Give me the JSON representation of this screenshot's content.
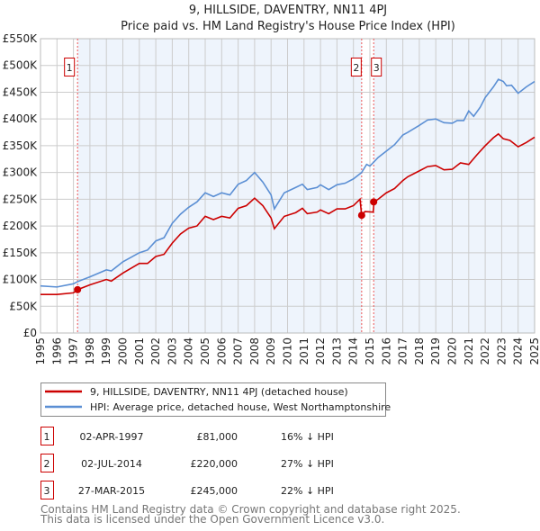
{
  "chart_data": {
    "type": "line",
    "title": "9, HILLSIDE, DAVENTRY, NN11 4PJ",
    "subtitle": "Price paid vs. HM Land Registry's House Price Index (HPI)",
    "xlim": [
      1995,
      2025
    ],
    "ylim": [
      0,
      550000
    ],
    "y_ticks": [
      0,
      50000,
      100000,
      150000,
      200000,
      250000,
      300000,
      350000,
      400000,
      450000,
      500000,
      550000
    ],
    "y_tick_labels": [
      "£0",
      "£50K",
      "£100K",
      "£150K",
      "£200K",
      "£250K",
      "£300K",
      "£350K",
      "£400K",
      "£450K",
      "£500K",
      "£550K"
    ],
    "x_ticks": [
      "1995",
      "1996",
      "1997",
      "1998",
      "1999",
      "2000",
      "2001",
      "2002",
      "2003",
      "2004",
      "2005",
      "2006",
      "2007",
      "2008",
      "2009",
      "2010",
      "2011",
      "2012",
      "2013",
      "2014",
      "2015",
      "2016",
      "2017",
      "2018",
      "2019",
      "2020",
      "2021",
      "2022",
      "2023",
      "2024",
      "2025"
    ],
    "grid": true,
    "legend_placement": "below",
    "series": [
      {
        "name": "9, HILLSIDE, DAVENTRY, NN11 4PJ (detached house)",
        "color": "#cc0000",
        "x": [
          1995,
          1996,
          1997,
          1997.25,
          1998,
          1999,
          1999.3,
          2000,
          2001,
          2001.5,
          2002,
          2002.5,
          2003,
          2003.5,
          2004,
          2004.5,
          2005,
          2005.5,
          2006,
          2006.5,
          2007,
          2007.5,
          2008,
          2008.5,
          2009,
          2009.2,
          2009.8,
          2010.5,
          2010.9,
          2011.2,
          2011.8,
          2012,
          2012.5,
          2013,
          2013.5,
          2014,
          2014.4,
          2014.5,
          2014.7,
          2015.2,
          2015.25,
          2015.5,
          2016,
          2016.5,
          2017,
          2017.3,
          2018,
          2018.5,
          2019,
          2019.5,
          2020,
          2020.5,
          2021,
          2021.5,
          2022,
          2022.5,
          2022.8,
          2023.1,
          2023.5,
          2024,
          2024.5,
          2025
        ],
        "y": [
          72000,
          72000,
          75000,
          81000,
          90000,
          100000,
          97000,
          112000,
          130000,
          130000,
          143000,
          147000,
          168000,
          185000,
          196000,
          200000,
          218000,
          212000,
          218000,
          215000,
          233000,
          238000,
          252000,
          238000,
          215000,
          195000,
          218000,
          225000,
          233000,
          223000,
          226000,
          230000,
          223000,
          232000,
          232000,
          238000,
          250000,
          220000,
          227000,
          226000,
          245000,
          250000,
          262000,
          270000,
          285000,
          292000,
          303000,
          311000,
          313000,
          305000,
          306000,
          318000,
          315000,
          333000,
          350000,
          365000,
          372000,
          363000,
          360000,
          348000,
          356000,
          366000
        ]
      },
      {
        "name": "HPI: Average price, detached house, West Northamptonshire",
        "color": "#5b8fd4",
        "x": [
          1995,
          1996,
          1997,
          1997.25,
          1998,
          1999,
          1999.3,
          2000,
          2001,
          2001.5,
          2002,
          2002.5,
          2003,
          2003.5,
          2004,
          2004.5,
          2005,
          2005.5,
          2006,
          2006.5,
          2007,
          2007.5,
          2008,
          2008.5,
          2009,
          2009.2,
          2009.8,
          2010.5,
          2010.9,
          2011.2,
          2011.8,
          2012,
          2012.5,
          2013,
          2013.5,
          2014,
          2014.5,
          2014.8,
          2015,
          2015.5,
          2016,
          2016.5,
          2017,
          2017.3,
          2018,
          2018.5,
          2019,
          2019.5,
          2020,
          2020.3,
          2020.7,
          2021,
          2021.3,
          2021.7,
          2022,
          2022.5,
          2022.8,
          2023.1,
          2023.3,
          2023.6,
          2024,
          2024.5,
          2025
        ],
        "y": [
          88000,
          86000,
          92000,
          96000,
          105000,
          118000,
          116000,
          133000,
          150000,
          155000,
          172000,
          178000,
          205000,
          222000,
          235000,
          245000,
          262000,
          255000,
          262000,
          258000,
          278000,
          285000,
          300000,
          282000,
          258000,
          232000,
          262000,
          272000,
          278000,
          268000,
          272000,
          277000,
          268000,
          277000,
          280000,
          288000,
          300000,
          315000,
          312000,
          328000,
          340000,
          352000,
          370000,
          375000,
          388000,
          398000,
          400000,
          393000,
          392000,
          397000,
          397000,
          415000,
          405000,
          422000,
          440000,
          460000,
          474000,
          470000,
          462000,
          463000,
          448000,
          460000,
          470000
        ]
      }
    ],
    "sales": [
      {
        "label": "1",
        "x": 1997.25,
        "price": 81000,
        "date": "02-APR-1997",
        "price_text": "£81,000",
        "hpi_text": "16% ↓ HPI"
      },
      {
        "label": "2",
        "x": 2014.5,
        "price": 220000,
        "date": "02-JUL-2014",
        "price_text": "£220,000",
        "hpi_text": "27% ↓ HPI"
      },
      {
        "label": "3",
        "x": 2015.23,
        "price": 245000,
        "date": "27-MAR-2015",
        "price_text": "£245,000",
        "hpi_text": "22% ↓ HPI"
      }
    ]
  },
  "footer": {
    "line1": "Contains HM Land Registry data © Crown copyright and database right 2025.",
    "line2": "This data is licensed under the Open Government Licence v3.0."
  }
}
